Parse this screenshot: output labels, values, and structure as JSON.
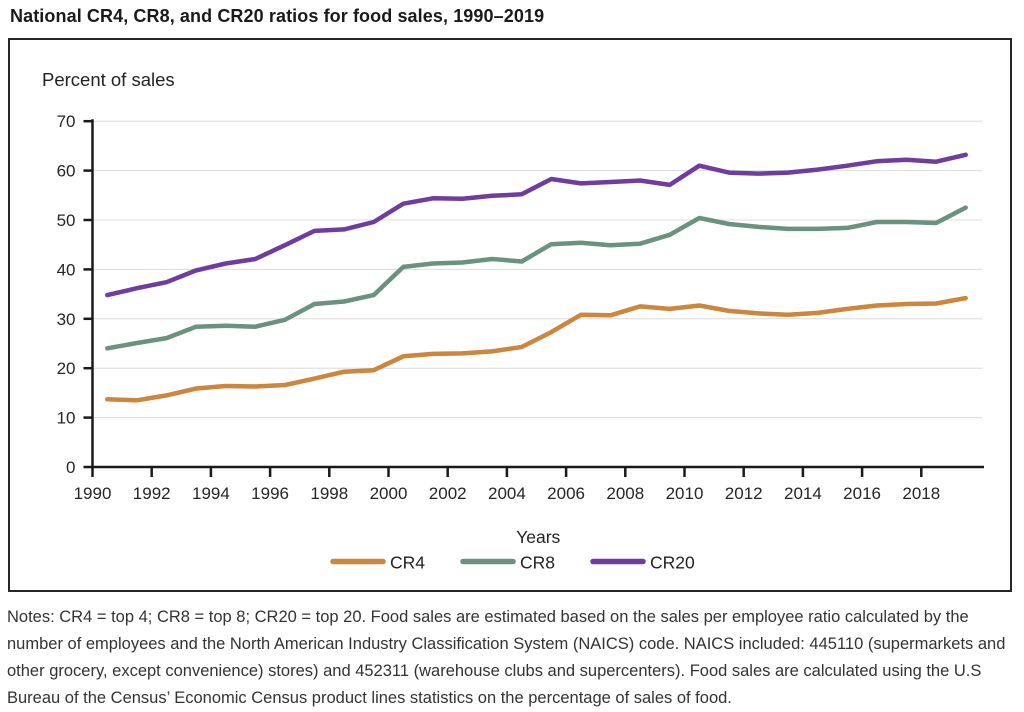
{
  "page": {
    "title": "National CR4, CR8, and CR20 ratios for food sales, 1990–2019",
    "notes": "Notes: CR4 = top 4; CR8 = top 8; CR20 = top 20. Food sales are estimated based on the sales per employee ratio calculated by the number of employees and the North American Industry Classification System (NAICS) code. NAICS included: 445110 (supermarkets and other grocery, except convenience) stores) and 452311 (warehouse clubs and supercenters). Food sales are calculated using the U.S Bureau of the Census’ Economic Census product lines statistics on the percentage of sales of food."
  },
  "chart_data": {
    "type": "line",
    "inner_title": "Percent of sales",
    "xlabel": "Years",
    "ylabel": "Percent of sales",
    "ylim": [
      0,
      70
    ],
    "y_ticks": [
      0,
      10,
      20,
      30,
      40,
      50,
      60,
      70
    ],
    "x_tick_years": [
      1990,
      1992,
      1994,
      1996,
      1998,
      2000,
      2002,
      2004,
      2006,
      2008,
      2010,
      2012,
      2014,
      2016,
      2018
    ],
    "grid": true,
    "legend_position": "bottom",
    "x": [
      1990,
      1991,
      1992,
      1993,
      1994,
      1995,
      1996,
      1997,
      1998,
      1999,
      2000,
      2001,
      2002,
      2003,
      2004,
      2005,
      2006,
      2007,
      2008,
      2009,
      2010,
      2011,
      2012,
      2013,
      2014,
      2015,
      2016,
      2017,
      2018,
      2019
    ],
    "series": [
      {
        "name": "CR4",
        "color": "#CC863D",
        "values": [
          13.7,
          13.5,
          14.5,
          15.9,
          16.4,
          16.3,
          16.6,
          17.9,
          19.3,
          19.6,
          22.4,
          22.9,
          23.0,
          23.4,
          24.3,
          27.3,
          30.8,
          30.7,
          32.5,
          32.0,
          32.7,
          31.6,
          31.1,
          30.8,
          31.2,
          32.0,
          32.7,
          33.0,
          33.1,
          34.2
        ]
      },
      {
        "name": "CR8",
        "color": "#6B9181",
        "values": [
          24.0,
          25.1,
          26.1,
          28.4,
          28.6,
          28.4,
          29.8,
          33.0,
          33.5,
          34.8,
          40.5,
          41.2,
          41.4,
          42.1,
          41.6,
          45.1,
          45.4,
          44.9,
          45.2,
          47.0,
          50.4,
          49.2,
          48.6,
          48.2,
          48.2,
          48.4,
          49.6,
          49.6,
          49.4,
          52.5
        ]
      },
      {
        "name": "CR20",
        "color": "#6F3D9E",
        "values": [
          34.8,
          36.2,
          37.4,
          39.8,
          41.2,
          42.1,
          44.9,
          47.8,
          48.1,
          49.6,
          53.3,
          54.4,
          54.3,
          54.9,
          55.2,
          58.3,
          57.4,
          57.7,
          58.0,
          57.1,
          61.0,
          59.6,
          59.4,
          59.6,
          60.2,
          61.0,
          61.9,
          62.2,
          61.8,
          63.2
        ]
      }
    ]
  }
}
